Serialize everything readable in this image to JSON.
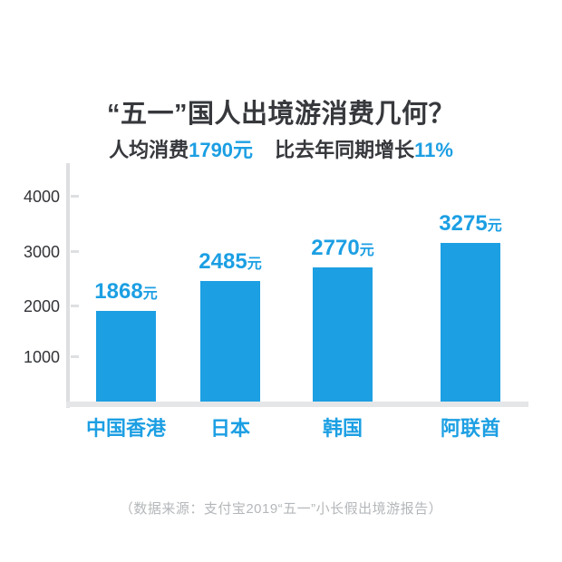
{
  "title": "“五一”国人出境游消费几何？",
  "subtitle": {
    "prefix": "人均消费",
    "per_capita_value": "1790",
    "per_capita_unit": "元",
    "middle": "比去年同期增长",
    "growth_value": "11%"
  },
  "source": "（数据来源：支付宝2019“五一”小长假出境游报告）",
  "colors": {
    "accent_blue": "#1C9FE3",
    "title_dark": "#36383C",
    "axis_gray": "#DEDFE1",
    "baseline_gray": "#E5E6E8",
    "source_gray": "#B4B7BA"
  },
  "chart_data": {
    "type": "bar",
    "title": "“五一”国人出境游消费几何？",
    "subtitle": "人均消费1790元 比去年同期增长11%",
    "categories": [
      "中国香港",
      "日本",
      "韩国",
      "阿联酋"
    ],
    "values": [
      1868,
      2485,
      2770,
      3275
    ],
    "unit": "元",
    "xlabel": "",
    "ylabel": "",
    "yticks": [
      1000,
      2000,
      3000,
      4000
    ],
    "ylim": [
      0,
      4600
    ],
    "grid": false,
    "legend": false,
    "bar_color": "#1C9FE3",
    "value_label_color": "#1C9FE3",
    "category_label_color": "#1C9FE3"
  }
}
